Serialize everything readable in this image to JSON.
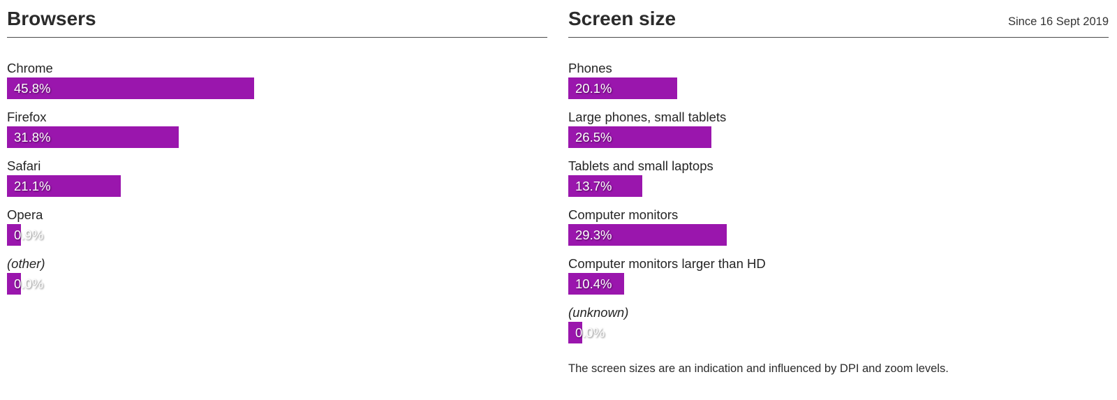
{
  "accent_color": "#9a16ad",
  "panels": [
    {
      "title": "Browsers",
      "note": "",
      "rows": [
        {
          "label": "Chrome",
          "value": "45.8%",
          "pct": 45.8,
          "italic": false
        },
        {
          "label": "Firefox",
          "value": "31.8%",
          "pct": 31.8,
          "italic": false
        },
        {
          "label": "Safari",
          "value": "21.1%",
          "pct": 21.1,
          "italic": false
        },
        {
          "label": "Opera",
          "value": "0.9%",
          "pct": 0.9,
          "italic": false
        },
        {
          "label": "(other)",
          "value": "0.0%",
          "pct": 0.0,
          "italic": true
        }
      ],
      "footnote": ""
    },
    {
      "title": "Screen size",
      "note": "Since 16 Sept 2019",
      "rows": [
        {
          "label": "Phones",
          "value": "20.1%",
          "pct": 20.1,
          "italic": false
        },
        {
          "label": "Large phones, small tablets",
          "value": "26.5%",
          "pct": 26.5,
          "italic": false
        },
        {
          "label": "Tablets and small laptops",
          "value": "13.7%",
          "pct": 13.7,
          "italic": false
        },
        {
          "label": "Computer monitors",
          "value": "29.3%",
          "pct": 29.3,
          "italic": false
        },
        {
          "label": "Computer monitors larger than HD",
          "value": "10.4%",
          "pct": 10.4,
          "italic": false
        },
        {
          "label": "(unknown)",
          "value": "0.0%",
          "pct": 0.0,
          "italic": true
        }
      ],
      "footnote": "The screen sizes are an indication and influenced by DPI and zoom levels."
    }
  ],
  "chart_data": [
    {
      "type": "bar",
      "orientation": "horizontal",
      "title": "Browsers",
      "categories": [
        "Chrome",
        "Firefox",
        "Safari",
        "Opera",
        "(other)"
      ],
      "values": [
        45.8,
        31.8,
        21.1,
        0.9,
        0.0
      ],
      "unit": "%",
      "xlim": [
        0,
        100
      ],
      "grid": false,
      "legend": "none",
      "bar_color": "#9a16ad",
      "value_labels": [
        "45.8%",
        "31.8%",
        "21.1%",
        "0.9%",
        "0.0%"
      ]
    },
    {
      "type": "bar",
      "orientation": "horizontal",
      "title": "Screen size",
      "subtitle": "Since 16 Sept 2019",
      "categories": [
        "Phones",
        "Large phones, small tablets",
        "Tablets and small laptops",
        "Computer monitors",
        "Computer monitors larger than HD",
        "(unknown)"
      ],
      "values": [
        20.1,
        26.5,
        13.7,
        29.3,
        10.4,
        0.0
      ],
      "unit": "%",
      "xlim": [
        0,
        100
      ],
      "grid": false,
      "legend": "none",
      "bar_color": "#9a16ad",
      "value_labels": [
        "20.1%",
        "26.5%",
        "13.7%",
        "29.3%",
        "10.4%",
        "0.0%"
      ],
      "annotation": "The screen sizes are an indication and influenced by DPI and zoom levels."
    }
  ]
}
